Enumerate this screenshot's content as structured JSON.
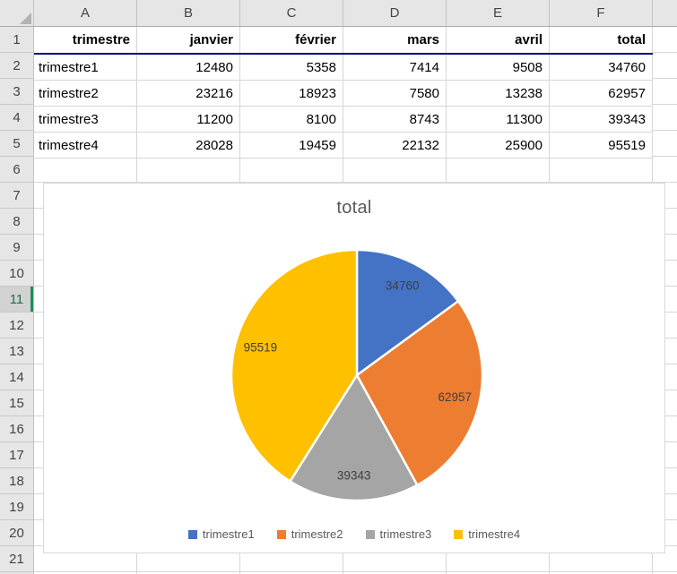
{
  "spreadsheet": {
    "columns": [
      "A",
      "B",
      "C",
      "D",
      "E",
      "F"
    ],
    "rows": [
      "1",
      "2",
      "3",
      "4",
      "5",
      "6",
      "7",
      "8",
      "9",
      "10",
      "11",
      "12",
      "13",
      "14",
      "15",
      "16",
      "17",
      "18",
      "19",
      "20",
      "21"
    ],
    "selected_row": "11",
    "table": {
      "headers": [
        "trimestre",
        "janvier",
        "février",
        "mars",
        "avril",
        "total"
      ],
      "data_rows": [
        [
          "trimestre1",
          "12480",
          "5358",
          "7414",
          "9508",
          "34760"
        ],
        [
          "trimestre2",
          "23216",
          "18923",
          "7580",
          "13238",
          "62957"
        ],
        [
          "trimestre3",
          "11200",
          "8100",
          "8743",
          "11300",
          "39343"
        ],
        [
          "trimestre4",
          "28028",
          "19459",
          "22132",
          "25900",
          "95519"
        ]
      ]
    },
    "header_underline_color": "#010680",
    "selected_row_accent": "#1E8F4E"
  },
  "chart_data": {
    "type": "pie",
    "title": "total",
    "categories": [
      "trimestre1",
      "trimestre2",
      "trimestre3",
      "trimestre4"
    ],
    "values": [
      34760,
      62957,
      39343,
      95519
    ],
    "colors": [
      "#4472C4",
      "#ED7D31",
      "#A5A5A5",
      "#FFC000"
    ],
    "data_labels": [
      "34760",
      "62957",
      "39343",
      "95519"
    ],
    "legend_position": "bottom",
    "start_angle_deg": 0,
    "title_color": "#595959",
    "label_color": "#404040",
    "legend_text_color": "#595959"
  }
}
